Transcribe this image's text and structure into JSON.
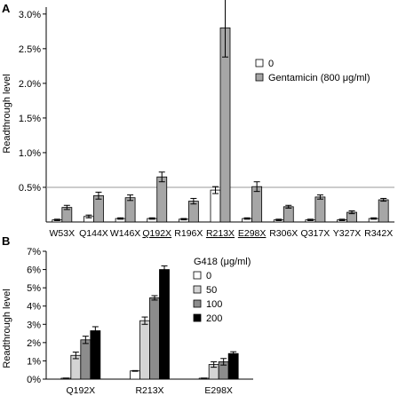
{
  "panels": [
    {
      "letter": "A",
      "ylabel": "Readthrough level",
      "chart_data": {
        "type": "bar",
        "categories": [
          "W53X",
          "Q144X",
          "W146X",
          "Q192X",
          "R196X",
          "R213X",
          "E298X",
          "R306X",
          "Q317X",
          "Y327X",
          "R342X"
        ],
        "underlined_categories": [
          "Q192X",
          "R213X",
          "E298X"
        ],
        "yticks": [
          "0.5%",
          "1.0%",
          "1.5%",
          "2.0%",
          "2.5%",
          "3.0%"
        ],
        "ytick_values": [
          0.5,
          1.0,
          1.5,
          2.0,
          2.5,
          3.0
        ],
        "ylim": [
          0,
          3.1
        ],
        "reference_line": 0.5,
        "legend_position": "top-right",
        "series": [
          {
            "name": "0",
            "color": "#ffffff",
            "values": [
              0.03,
              0.08,
              0.05,
              0.05,
              0.04,
              0.46,
              0.05,
              0.03,
              0.03,
              0.03,
              0.05
            ],
            "errors": [
              0.01,
              0.02,
              0.01,
              0.01,
              0.01,
              0.05,
              0.01,
              0.01,
              0.01,
              0.01,
              0.01
            ]
          },
          {
            "name": "Gentamicin (800 μg/ml)",
            "color": "#a6a6a6",
            "values": [
              0.21,
              0.38,
              0.35,
              0.65,
              0.3,
              2.8,
              0.51,
              0.22,
              0.36,
              0.14,
              0.32
            ],
            "errors": [
              0.03,
              0.05,
              0.04,
              0.07,
              0.04,
              0.42,
              0.07,
              0.02,
              0.03,
              0.02,
              0.02
            ]
          }
        ]
      }
    },
    {
      "letter": "B",
      "ylabel": "Readthrough level",
      "chart_data": {
        "type": "bar",
        "categories": [
          "Q192X",
          "R213X",
          "E298X"
        ],
        "yticks": [
          "0%",
          "1%",
          "2%",
          "3%",
          "4%",
          "5%",
          "6%",
          "7%"
        ],
        "ytick_values": [
          0,
          1,
          2,
          3,
          4,
          5,
          6,
          7
        ],
        "ylim": [
          0,
          7
        ],
        "legend_title": "G418 (μg/ml)",
        "legend_position": "top-right",
        "series": [
          {
            "name": "0",
            "color": "#ffffff",
            "values": [
              0.05,
              0.45,
              0.05
            ],
            "errors": [
              0.01,
              0.02,
              0.01
            ]
          },
          {
            "name": "50",
            "color": "#d4d4d4",
            "values": [
              1.3,
              3.2,
              0.8
            ],
            "errors": [
              0.18,
              0.2,
              0.15
            ]
          },
          {
            "name": "100",
            "color": "#8c8c8c",
            "values": [
              2.15,
              4.45,
              0.95
            ],
            "errors": [
              0.2,
              0.12,
              0.18
            ]
          },
          {
            "name": "200",
            "color": "#000000",
            "values": [
              2.65,
              6.0,
              1.4
            ],
            "errors": [
              0.22,
              0.2,
              0.1
            ]
          }
        ]
      }
    }
  ]
}
